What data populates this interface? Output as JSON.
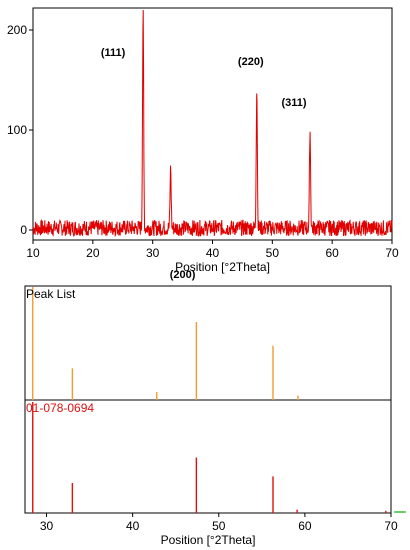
{
  "chart_data": [
    {
      "type": "line",
      "title": "",
      "xlabel": "Position [°2Theta]",
      "ylabel": "",
      "xlim": [
        10,
        70
      ],
      "ylim": [
        -10,
        222
      ],
      "xticks": [
        10,
        20,
        30,
        40,
        50,
        60,
        70
      ],
      "yticks": [
        0,
        100,
        200
      ],
      "grid": false,
      "series": [
        {
          "color": "#e00000",
          "noise_level": 8,
          "peaks": [
            {
              "x": 28.4,
              "height": 220,
              "label": "(111)"
            },
            {
              "x": 33.0,
              "height": 60,
              "label": "(200)"
            },
            {
              "x": 47.4,
              "height": 143,
              "label": "(220)"
            },
            {
              "x": 56.3,
              "height": 100,
              "label": "(311)"
            }
          ]
        }
      ]
    },
    {
      "type": "bar",
      "title": "Peak List",
      "xlabel": "Position [°2Theta]",
      "xlim": [
        27.5,
        70
      ],
      "xticks": [
        30,
        40,
        50,
        60,
        70
      ],
      "panels": [
        {
          "name": "Peak List",
          "color": "#f29b30",
          "peaks": [
            {
              "x": 28.4,
              "height": 1.0
            },
            {
              "x": 33.0,
              "height": 0.28
            },
            {
              "x": 42.8,
              "height": 0.07
            },
            {
              "x": 47.4,
              "height": 0.69
            },
            {
              "x": 56.3,
              "height": 0.48
            },
            {
              "x": 59.2,
              "height": 0.04
            }
          ]
        },
        {
          "name": "01-078-0694",
          "color": "#e01010",
          "peaks": [
            {
              "x": 28.4,
              "height": 1.0
            },
            {
              "x": 33.0,
              "height": 0.27
            },
            {
              "x": 47.4,
              "height": 0.5
            },
            {
              "x": 56.3,
              "height": 0.33
            },
            {
              "x": 59.1,
              "height": 0.03
            },
            {
              "x": 69.4,
              "height": 0.02
            }
          ]
        }
      ]
    }
  ]
}
